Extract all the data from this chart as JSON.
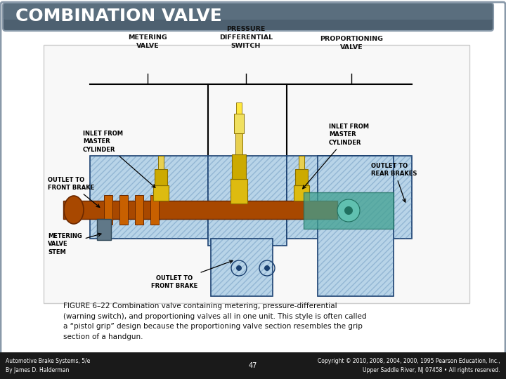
{
  "title": "COMBINATION VALVE",
  "title_bg_color": "#4d6070",
  "title_text_color": "#ffffff",
  "slide_bg_color": "#ffffff",
  "border_color": "#8a9aaa",
  "figure_caption": "FIGURE 6–22 Combination valve containing metering, pressure-differential\n(warning switch), and proportioning valves all in one unit. This style is often called\na “pistol grip” design because the proportioning valve section resembles the grip\nsection of a handgun.",
  "footer_left": "Automotive Brake Systems, 5/e\nBy James D. Halderman",
  "footer_center": "47",
  "footer_right": "Copyright © 2010, 2008, 2004, 2000, 1995 Pearson Education, Inc.,\nUpper Saddle River, NJ 07458 • All rights reserved.",
  "footer_bg": "#1a1a1a",
  "footer_text_color": "#ffffff"
}
